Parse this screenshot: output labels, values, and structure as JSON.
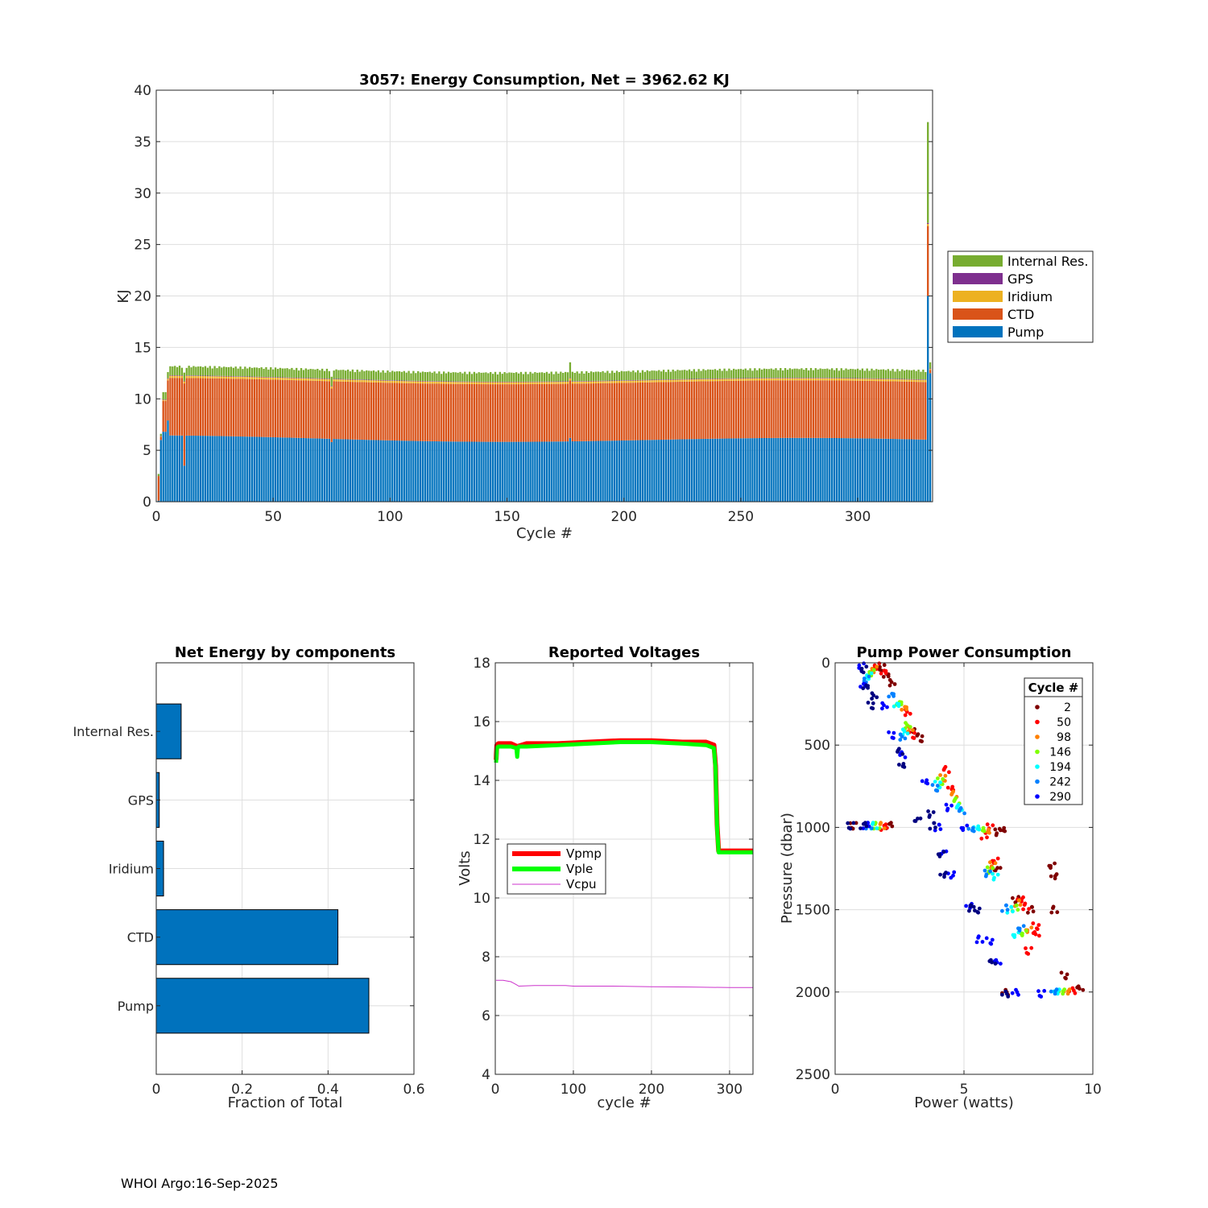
{
  "footer": "WHOI Argo:16-Sep-2025",
  "colors": {
    "pump": "#0072BD",
    "ctd": "#D95319",
    "iridium": "#EDB120",
    "gps": "#7E2F8E",
    "internal": "#77AC30",
    "vpmp": "#FF0000",
    "vple": "#00FF00",
    "vcpu": "#CC33CC"
  },
  "chart_data": [
    {
      "type": "bar",
      "stacked": true,
      "title": "3057: Energy Consumption,  Net = 3962.62 KJ",
      "xlabel": "Cycle #",
      "ylabel": "KJ",
      "xlim": [
        0,
        332
      ],
      "ylim": [
        0,
        40
      ],
      "xticks": [
        0,
        50,
        100,
        150,
        200,
        250,
        300
      ],
      "yticks": [
        0,
        5,
        10,
        15,
        20,
        25,
        30,
        35,
        40
      ],
      "grid": true,
      "legend_position": "right",
      "legend": [
        "Internal Res.",
        "GPS",
        "Iridium",
        "CTD",
        "Pump"
      ],
      "cycles_range": [
        1,
        331
      ],
      "series_typical": {
        "Pump": 6.2,
        "CTD": 5.6,
        "Iridium": 0.2,
        "GPS": 0.05,
        "Internal Res.": 0.7
      },
      "special_bars": [
        {
          "cycle": 1,
          "Pump": 0.1,
          "CTD": 2.4,
          "Iridium": 0,
          "GPS": 0,
          "Internal Res.": 0.2
        },
        {
          "cycle": 2,
          "Pump": 6.0,
          "CTD": 0.3,
          "Iridium": 0.05,
          "GPS": 0.05,
          "Internal Res.": 0.2
        },
        {
          "cycle": 3,
          "Pump": 6.8,
          "CTD": 3.0,
          "Iridium": 0.1,
          "GPS": 0.05,
          "Internal Res.": 0.7
        },
        {
          "cycle": 4,
          "Pump": 6.8,
          "CTD": 3.0,
          "Iridium": 0.1,
          "GPS": 0.05,
          "Internal Res.": 0.7
        },
        {
          "cycle": 5,
          "Pump": 7.9,
          "CTD": 3.9,
          "Iridium": 0.15,
          "GPS": 0.05,
          "Internal Res.": 0.6
        },
        {
          "cycle": 12,
          "Pump": 3.5,
          "CTD": 8.0,
          "Iridium": 0.2,
          "GPS": 0.05,
          "Internal Res.": 0.8
        },
        {
          "cycle": 75,
          "Pump": 5.8,
          "CTD": 5.2,
          "Iridium": 0.2,
          "GPS": 0.05,
          "Internal Res.": 0.9
        },
        {
          "cycle": 177,
          "Pump": 6.2,
          "CTD": 5.6,
          "Iridium": 0.2,
          "GPS": 0.05,
          "Internal Res.": 1.5
        },
        {
          "cycle": 330,
          "Pump": 20.0,
          "CTD": 6.8,
          "Iridium": 0.2,
          "GPS": 0.1,
          "Internal Res.": 9.8
        },
        {
          "cycle": 331,
          "Pump": 12.5,
          "CTD": 0.3,
          "Iridium": 0.1,
          "GPS": 0.05,
          "Internal Res.": 0.6
        }
      ]
    },
    {
      "type": "bar",
      "orientation": "horizontal",
      "title": "Net Energy by components",
      "xlabel": "Fraction of Total",
      "xlim": [
        0,
        0.6
      ],
      "xticks": [
        0,
        0.2,
        0.4,
        0.6
      ],
      "categories": [
        "Internal Res.",
        "GPS",
        "Iridium",
        "CTD",
        "Pump"
      ],
      "values": [
        0.058,
        0.007,
        0.017,
        0.423,
        0.495
      ],
      "grid": true
    },
    {
      "type": "line",
      "title": "Reported Voltages",
      "xlabel": "cycle #",
      "ylabel": "Volts",
      "xlim": [
        0,
        330
      ],
      "ylim": [
        4,
        18
      ],
      "xticks": [
        0,
        100,
        200,
        300
      ],
      "yticks": [
        4,
        6,
        8,
        10,
        12,
        14,
        16,
        18
      ],
      "grid": true,
      "legend_position": "center-left",
      "series": [
        {
          "name": "Vpmp",
          "x": [
            1,
            2,
            4,
            10,
            20,
            28,
            40,
            80,
            120,
            160,
            200,
            240,
            270,
            280,
            282,
            284,
            286,
            290,
            300,
            330
          ],
          "y": [
            14.7,
            15.2,
            15.25,
            15.25,
            15.25,
            15.15,
            15.25,
            15.25,
            15.3,
            15.35,
            15.35,
            15.3,
            15.3,
            15.2,
            14.5,
            12.5,
            11.6,
            11.6,
            11.6,
            11.6
          ]
        },
        {
          "name": "Vple",
          "x": [
            1,
            2,
            4,
            10,
            20,
            27,
            28,
            29,
            30,
            40,
            80,
            120,
            160,
            200,
            240,
            270,
            280,
            282,
            284,
            286,
            290,
            300,
            330
          ],
          "y": [
            14.6,
            15.1,
            15.15,
            15.15,
            15.15,
            15.1,
            14.8,
            15.1,
            15.15,
            15.15,
            15.2,
            15.25,
            15.3,
            15.3,
            15.25,
            15.2,
            15.1,
            14.4,
            12.4,
            11.55,
            11.55,
            11.55,
            11.55
          ]
        },
        {
          "name": "Vcpu",
          "x": [
            1,
            10,
            20,
            27,
            30,
            50,
            90,
            100,
            150,
            200,
            250,
            300,
            330
          ],
          "y": [
            7.2,
            7.2,
            7.15,
            7.05,
            7.0,
            7.02,
            7.02,
            7.0,
            7.0,
            6.98,
            6.97,
            6.95,
            6.95
          ]
        }
      ]
    },
    {
      "type": "scatter",
      "title": "Pump Power Consumption",
      "xlabel": "Power (watts)",
      "ylabel": "Pressure (dbar)",
      "xlim": [
        0,
        10
      ],
      "ylim": [
        0,
        2500
      ],
      "y_reversed": true,
      "xticks": [
        0,
        5,
        10
      ],
      "yticks": [
        0,
        500,
        1000,
        1500,
        2000,
        2500
      ],
      "grid": true,
      "legend_title": "Cycle #",
      "legend_position": "top-right",
      "series": [
        {
          "name": "2",
          "color": "#7F0000",
          "points": [
            [
              1.8,
              30
            ],
            [
              2.0,
              80
            ],
            [
              2.2,
              120
            ],
            [
              3.3,
              460
            ],
            [
              3.1,
              420
            ],
            [
              6.5,
              1010
            ],
            [
              6.3,
              1030
            ],
            [
              7.6,
              1500
            ],
            [
              8.4,
              1230
            ],
            [
              8.5,
              1300
            ],
            [
              8.5,
              1500
            ],
            [
              8.9,
              1900
            ],
            [
              9.5,
              1980
            ],
            [
              6.6,
              2000
            ],
            [
              0.7,
              990
            ],
            [
              2.1,
              990
            ],
            [
              6.3,
              1250
            ],
            [
              7.0,
              1440
            ]
          ]
        },
        {
          "name": "50",
          "color": "#FF0000",
          "points": [
            [
              1.6,
              20
            ],
            [
              1.9,
              60
            ],
            [
              2.8,
              300
            ],
            [
              3.0,
              440
            ],
            [
              4.3,
              650
            ],
            [
              4.5,
              760
            ],
            [
              6.0,
              1000
            ],
            [
              5.8,
              1050
            ],
            [
              6.2,
              1200
            ],
            [
              7.2,
              1440
            ],
            [
              7.4,
              1480
            ],
            [
              7.8,
              1600
            ],
            [
              7.8,
              1650
            ],
            [
              9.2,
              1990
            ],
            [
              7.5,
              1750
            ],
            [
              1.9,
              1000
            ]
          ]
        },
        {
          "name": "98",
          "color": "#FF8000",
          "points": [
            [
              1.5,
              40
            ],
            [
              2.7,
              280
            ],
            [
              2.9,
              400
            ],
            [
              4.2,
              700
            ],
            [
              4.6,
              800
            ],
            [
              5.9,
              1020
            ],
            [
              6.1,
              1230
            ],
            [
              7.1,
              1460
            ],
            [
              7.5,
              1620
            ],
            [
              9.0,
              2000
            ],
            [
              1.8,
              990
            ]
          ]
        },
        {
          "name": "146",
          "color": "#80FF00",
          "points": [
            [
              1.4,
              60
            ],
            [
              2.5,
              250
            ],
            [
              2.8,
              380
            ],
            [
              4.1,
              720
            ],
            [
              4.7,
              840
            ],
            [
              5.7,
              1010
            ],
            [
              6.0,
              1260
            ],
            [
              7.0,
              1490
            ],
            [
              7.3,
              1640
            ],
            [
              8.8,
              2000
            ],
            [
              1.6,
              990
            ]
          ]
        },
        {
          "name": "194",
          "color": "#00FFFF",
          "points": [
            [
              1.3,
              80
            ],
            [
              2.4,
              260
            ],
            [
              2.7,
              420
            ],
            [
              4.0,
              740
            ],
            [
              4.8,
              880
            ],
            [
              5.5,
              1000
            ],
            [
              6.2,
              1300
            ],
            [
              6.8,
              1500
            ],
            [
              7.0,
              1650
            ],
            [
              8.6,
              2000
            ],
            [
              1.5,
              990
            ]
          ]
        },
        {
          "name": "242",
          "color": "#0080FF",
          "points": [
            [
              1.2,
              100
            ],
            [
              2.2,
              200
            ],
            [
              2.6,
              450
            ],
            [
              3.9,
              760
            ],
            [
              4.9,
              900
            ],
            [
              5.3,
              1010
            ],
            [
              5.9,
              1280
            ],
            [
              6.6,
              1490
            ],
            [
              7.2,
              1610
            ],
            [
              8.5,
              2000
            ],
            [
              1.3,
              990
            ]
          ]
        },
        {
          "name": "290",
          "color": "#0000FF",
          "points": [
            [
              1.0,
              20
            ],
            [
              1.1,
              140
            ],
            [
              1.9,
              260
            ],
            [
              2.2,
              440
            ],
            [
              2.6,
              560
            ],
            [
              3.5,
              720
            ],
            [
              4.4,
              880
            ],
            [
              4.0,
              1000
            ],
            [
              5.0,
              1000
            ],
            [
              5.2,
              1480
            ],
            [
              5.6,
              1680
            ],
            [
              6.0,
              1690
            ],
            [
              6.3,
              1820
            ],
            [
              7.0,
              2000
            ],
            [
              8.0,
              2010
            ],
            [
              1.2,
              990
            ],
            [
              4.2,
              1150
            ],
            [
              4.5,
              1290
            ]
          ]
        },
        {
          "name": "",
          "color": "#000080",
          "points": [
            [
              1.1,
              40
            ],
            [
              1.2,
              150
            ],
            [
              1.5,
              200
            ],
            [
              1.4,
              260
            ],
            [
              2.5,
              540
            ],
            [
              2.6,
              620
            ],
            [
              3.7,
              920
            ],
            [
              3.8,
              990
            ],
            [
              4.1,
              1160
            ],
            [
              4.2,
              1290
            ],
            [
              5.3,
              1490
            ],
            [
              5.5,
              1500
            ],
            [
              6.1,
              1820
            ],
            [
              6.6,
              2010
            ],
            [
              0.6,
              990
            ],
            [
              1.1,
              990
            ],
            [
              3.2,
              950
            ]
          ]
        }
      ]
    }
  ]
}
